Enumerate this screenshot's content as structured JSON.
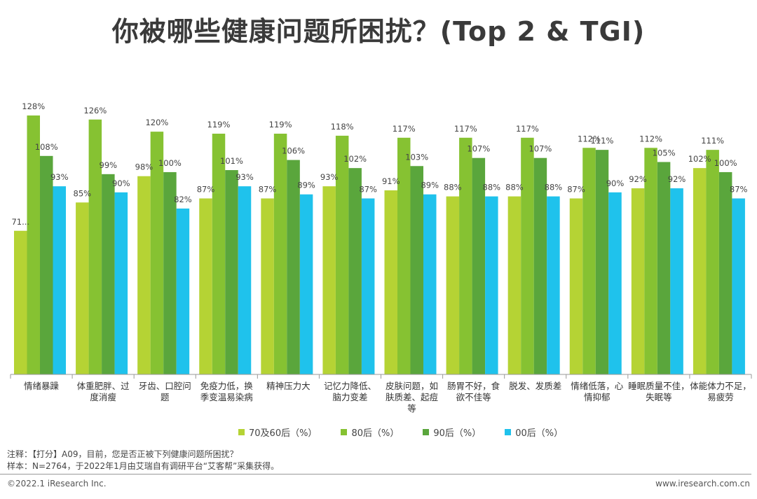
{
  "title": "你被哪些健康问题所困扰？(Top 2 & TGI)",
  "chart_data": {
    "type": "bar",
    "categories": [
      [
        "情绪暴躁"
      ],
      [
        "体重肥胖、过",
        "度消瘦"
      ],
      [
        "牙齿、口腔问",
        "题"
      ],
      [
        "免疫力低，换",
        "季变温易染病"
      ],
      [
        "精神压力大"
      ],
      [
        "记忆力降低、",
        "脑力变差"
      ],
      [
        "皮肤问题，如",
        "肤质差、起痘",
        "等"
      ],
      [
        "肠胃不好，食",
        "欲不佳等"
      ],
      [
        "脱发、发质差"
      ],
      [
        "情绪低落，心",
        "情抑郁"
      ],
      [
        "睡眠质量不佳，",
        "失眠等"
      ],
      [
        "体能体力不足，",
        "易疲劳"
      ]
    ],
    "series": [
      {
        "name": "70及60后（%）",
        "color": "#b5d334",
        "values": [
          71,
          85,
          98,
          87,
          87,
          93,
          91,
          88,
          88,
          87,
          92,
          102
        ],
        "labels": [
          "71...",
          "85%",
          "98%",
          "87%",
          "87%",
          "93%",
          "91%",
          "88%",
          "88%",
          "87%",
          "92%",
          "102%"
        ]
      },
      {
        "name": "80后（%）",
        "color": "#86c232",
        "values": [
          128,
          126,
          120,
          119,
          119,
          118,
          117,
          117,
          117,
          112,
          112,
          111
        ],
        "labels": [
          "128%",
          "126%",
          "120%",
          "119%",
          "119%",
          "118%",
          "117%",
          "117%",
          "117%",
          "112%",
          "112%",
          "111%"
        ]
      },
      {
        "name": "90后（%）",
        "color": "#5aa63c",
        "values": [
          108,
          99,
          100,
          101,
          106,
          102,
          103,
          107,
          107,
          111,
          105,
          100
        ],
        "labels": [
          "108%",
          "99%",
          "100%",
          "101%",
          "106%",
          "102%",
          "103%",
          "107%",
          "107%",
          "111%",
          "105%",
          "100%"
        ]
      },
      {
        "name": "00后（%）",
        "color": "#1fc2ec",
        "values": [
          93,
          90,
          82,
          93,
          89,
          87,
          89,
          88,
          88,
          90,
          92,
          87
        ],
        "labels": [
          "93%",
          "90%",
          "82%",
          "93%",
          "89%",
          "87%",
          "89%",
          "88%",
          "88%",
          "90%",
          "92%",
          "87%"
        ]
      }
    ],
    "ylim": [
      0,
      130
    ],
    "grid": false,
    "legend": "bottom"
  },
  "notes": {
    "line1": "注释：【打分】A09，目前，您是否正被下列健康问题所困扰？",
    "line2": "样本：N=2764，于2022年1月由艾瑞自有调研平台“艾客帮”采集获得。"
  },
  "footer": {
    "copyright": "©2022.1 iResearch Inc.",
    "website": "www.iresearch.com.cn"
  }
}
